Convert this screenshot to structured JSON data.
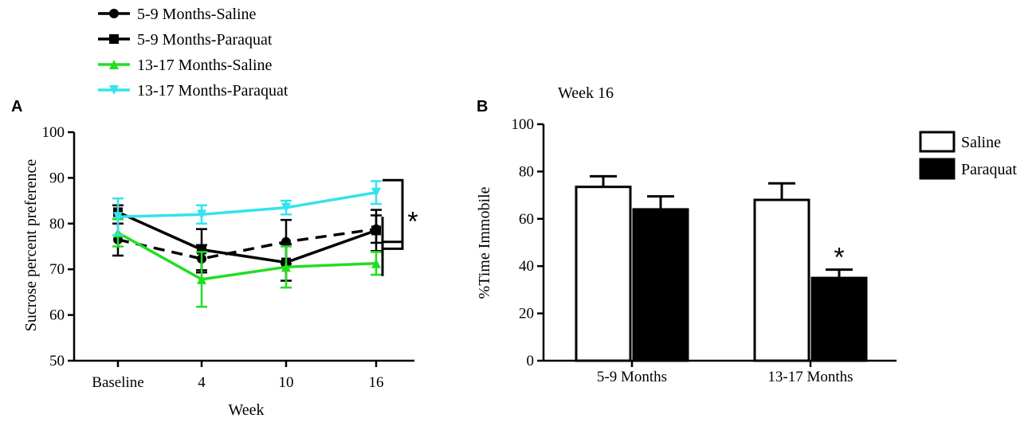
{
  "chart_data": [
    {
      "type": "line",
      "panel": "A",
      "title": "",
      "xlabel": "Week",
      "ylabel": "Sucrose percent preference",
      "categories": [
        "Baseline",
        "4",
        "10",
        "16"
      ],
      "ylim": [
        50,
        100
      ],
      "yticks": [
        50,
        60,
        70,
        80,
        90,
        100
      ],
      "legend_position": "top-left",
      "series": [
        {
          "name": "5-9 Months-Saline",
          "color": "#000000",
          "marker": "circle",
          "dashed": true,
          "values": [
            76.5,
            72.3,
            76.0,
            78.8
          ],
          "errors": [
            3.5,
            3.0,
            4.8,
            3.0
          ]
        },
        {
          "name": "5-9 Months-Paraquat",
          "color": "#000000",
          "marker": "square",
          "dashed": false,
          "values": [
            82.5,
            74.3,
            71.5,
            78.5
          ],
          "errors": [
            1.5,
            4.5,
            4.0,
            4.5
          ]
        },
        {
          "name": "13-17 Months-Saline",
          "color": "#22dd22",
          "marker": "triangle-up",
          "dashed": false,
          "values": [
            78.0,
            67.8,
            70.5,
            71.3
          ],
          "errors": [
            3.0,
            6.0,
            4.5,
            2.5
          ]
        },
        {
          "name": "13-17 Months-Paraquat",
          "color": "#33e3ee",
          "marker": "triangle-down",
          "dashed": false,
          "values": [
            81.5,
            82.0,
            83.5,
            86.8
          ],
          "errors": [
            4.0,
            2.0,
            1.5,
            2.5
          ]
        }
      ],
      "annotations": [
        {
          "text": "*",
          "at": "16"
        }
      ]
    },
    {
      "type": "bar",
      "panel": "B",
      "title": "Week 16",
      "xlabel": "",
      "ylabel": "%Time Immobile",
      "categories": [
        "5-9 Months",
        "13-17 Months"
      ],
      "ylim": [
        0,
        100
      ],
      "yticks": [
        0,
        20,
        40,
        60,
        80,
        100
      ],
      "legend_position": "top-right",
      "series": [
        {
          "name": "Saline",
          "fill": "#ffffff",
          "values": [
            73.5,
            68.0
          ],
          "errors": [
            4.5,
            7.0
          ]
        },
        {
          "name": "Paraquat",
          "fill": "#000000",
          "values": [
            64.0,
            35.0
          ],
          "errors": [
            5.5,
            3.5
          ]
        }
      ],
      "annotations": [
        {
          "text": "*",
          "category": "13-17 Months",
          "series": "Paraquat"
        }
      ]
    }
  ]
}
